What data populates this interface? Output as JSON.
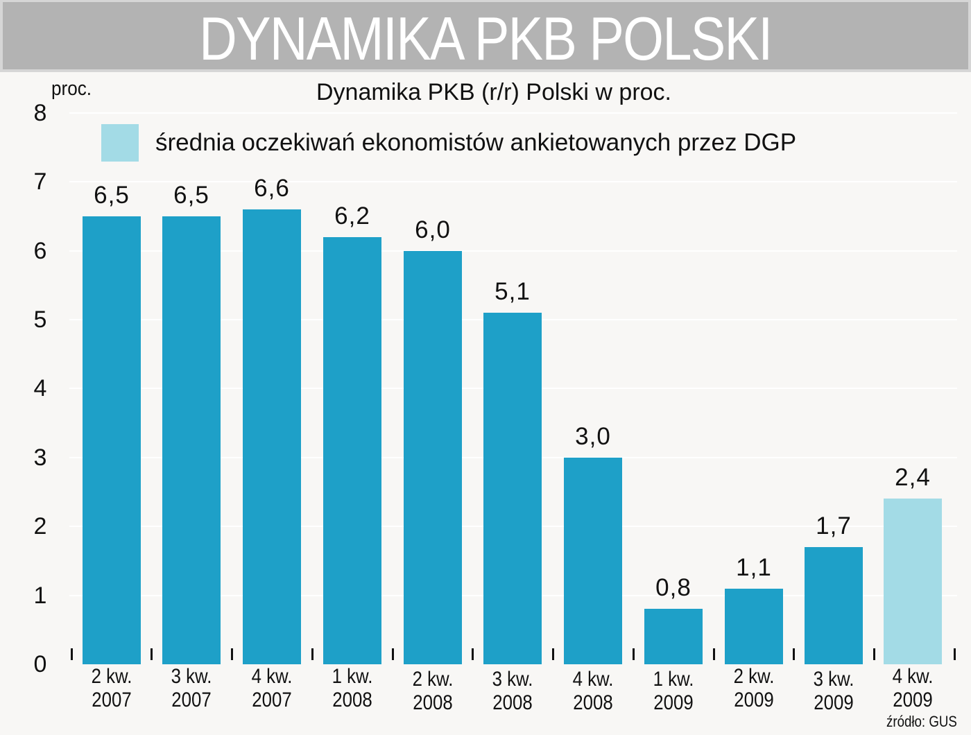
{
  "header": {
    "title": "DYNAMIKA PKB POLSKI"
  },
  "chart": {
    "subtitle": "Dynamika PKB (r/r) Polski w proc.",
    "unit_label": "proc.",
    "legend": {
      "label": "średnia oczekiwań ekonomistów ankietowanych przez DGP",
      "color": "#a3dbe6"
    },
    "source": "źródło: GUS",
    "colors": {
      "actual": "#1ea0c8",
      "forecast": "#a3dbe6",
      "background": "#f8f7f5",
      "banner": "#b3b3b3"
    },
    "y_ticks": [
      "0",
      "1",
      "2",
      "3",
      "4",
      "5",
      "6",
      "7",
      "8"
    ],
    "bars": [
      {
        "label_q": "2 kw.",
        "label_y": "2007",
        "value": "6,5"
      },
      {
        "label_q": "3 kw.",
        "label_y": "2007",
        "value": "6,5"
      },
      {
        "label_q": "4 kw.",
        "label_y": "2007",
        "value": "6,6"
      },
      {
        "label_q": "1 kw.",
        "label_y": "2008",
        "value": "6,2"
      },
      {
        "label_q": "2 kw.",
        "label_y": "2008",
        "value": "6,0"
      },
      {
        "label_q": "3 kw.",
        "label_y": "2008",
        "value": "5,1"
      },
      {
        "label_q": "4 kw.",
        "label_y": "2008",
        "value": "3,0"
      },
      {
        "label_q": "1 kw.",
        "label_y": "2009",
        "value": "0,8"
      },
      {
        "label_q": "2 kw.",
        "label_y": "2009",
        "value": "1,1"
      },
      {
        "label_q": "3 kw.",
        "label_y": "2009",
        "value": "1,7"
      },
      {
        "label_q": "4 kw.",
        "label_y": "2009",
        "value": "2,4"
      }
    ]
  },
  "chart_data": {
    "type": "bar",
    "title": "DYNAMIKA PKB POLSKI",
    "subtitle": "Dynamika PKB (r/r) Polski w proc.",
    "xlabel": "",
    "ylabel": "proc.",
    "ylim": [
      0,
      8
    ],
    "y_ticks": [
      0,
      1,
      2,
      3,
      4,
      5,
      6,
      7,
      8
    ],
    "grid": true,
    "categories": [
      "2 kw. 2007",
      "3 kw. 2007",
      "4 kw. 2007",
      "1 kw. 2008",
      "2 kw. 2008",
      "3 kw. 2008",
      "4 kw. 2008",
      "1 kw. 2009",
      "2 kw. 2009",
      "3 kw. 2009",
      "4 kw. 2009"
    ],
    "values": [
      6.5,
      6.5,
      6.6,
      6.2,
      6.0,
      5.1,
      3.0,
      0.8,
      1.1,
      1.7,
      2.4
    ],
    "series": [
      {
        "name": "Dynamika PKB (r/r)",
        "values": [
          6.5,
          6.5,
          6.6,
          6.2,
          6.0,
          5.1,
          3.0,
          0.8,
          1.1,
          1.7,
          null
        ],
        "color": "#1ea0c8"
      },
      {
        "name": "średnia oczekiwań ekonomistów ankietowanych przez DGP",
        "values": [
          null,
          null,
          null,
          null,
          null,
          null,
          null,
          null,
          null,
          null,
          2.4
        ],
        "color": "#a3dbe6"
      }
    ],
    "legend": {
      "entries": [
        "średnia oczekiwań ekonomistów ankietowanych przez DGP"
      ],
      "position": "top"
    },
    "annotations": [
      "źródło: GUS"
    ]
  }
}
